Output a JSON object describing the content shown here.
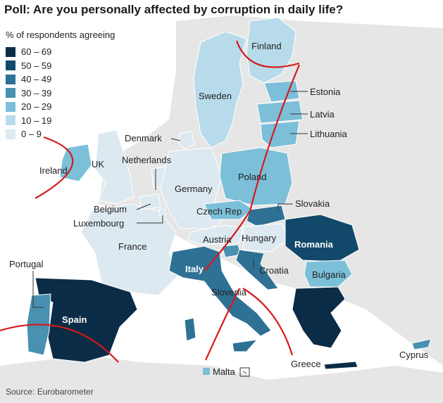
{
  "title": "Poll: Are you personally affected by corruption in daily life?",
  "legend": {
    "title": "% of respondents agreeing",
    "items": [
      {
        "label": "60 – 69",
        "color": "#0b2c47"
      },
      {
        "label": "50 – 59",
        "color": "#12486a"
      },
      {
        "label": "40 – 49",
        "color": "#2e7195"
      },
      {
        "label": "30 – 39",
        "color": "#4990b1"
      },
      {
        "label": "20 – 29",
        "color": "#7cbfd9"
      },
      {
        "label": "10 – 19",
        "color": "#b7dbea"
      },
      {
        "label": "0 – 9",
        "color": "#dde9f1"
      }
    ]
  },
  "countries": {
    "finland": "Finland",
    "sweden": "Sweden",
    "estonia": "Estonia",
    "latvia": "Latvia",
    "lithuania": "Lithuania",
    "denmark": "Denmark",
    "netherlands": "Netherlands",
    "ireland": "Ireland",
    "uk": "UK",
    "germany": "Germany",
    "poland": "Poland",
    "belgium": "Belgium",
    "luxembourg": "Luxembourg",
    "czech": "Czech Rep",
    "slovakia": "Slovakia",
    "austria": "Austria",
    "hungary": "Hungary",
    "romania": "Romania",
    "france": "France",
    "italy": "Italy",
    "croatia": "Croatia",
    "slovenia": "Slovenia",
    "bulgaria": "Bulgaria",
    "portugal": "Portugal",
    "spain": "Spain",
    "greece": "Greece",
    "malta": "Malta",
    "cyprus": "Cyprus"
  },
  "colors": {
    "land_other": "#e6e6e6",
    "sea": "#ffffff",
    "annotation": "#d7191c"
  },
  "source": "Source: Eurobarometer"
}
